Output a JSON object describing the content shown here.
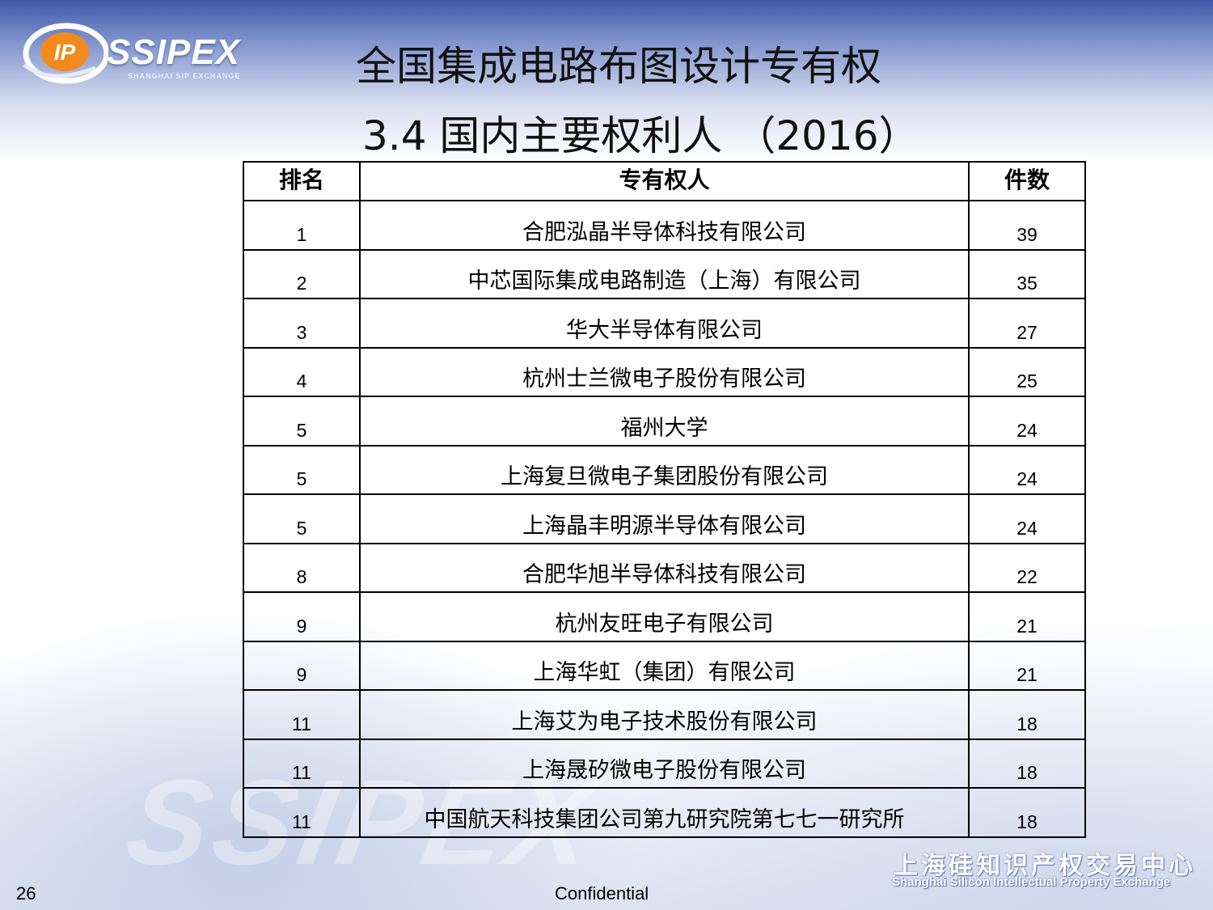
{
  "logo": {
    "mark_text": "IP",
    "name": "SSIPEX",
    "tagline": "SHANGHAI SIP EXCHANGE"
  },
  "slide": {
    "title": "全国集成电路布图设计专有权",
    "subtitle": "3.4  国内主要权利人 （2016）"
  },
  "table": {
    "headers": {
      "rank": "排名",
      "holder": "专有权人",
      "count": "件数"
    },
    "rows": [
      {
        "rank": "1",
        "holder": "合肥泓晶半导体科技有限公司",
        "count": "39"
      },
      {
        "rank": "2",
        "holder": "中芯国际集成电路制造（上海）有限公司",
        "count": "35"
      },
      {
        "rank": "3",
        "holder": "华大半导体有限公司",
        "count": "27"
      },
      {
        "rank": "4",
        "holder": "杭州士兰微电子股份有限公司",
        "count": "25"
      },
      {
        "rank": "5",
        "holder": "福州大学",
        "count": "24"
      },
      {
        "rank": "5",
        "holder": "上海复旦微电子集团股份有限公司",
        "count": "24"
      },
      {
        "rank": "5",
        "holder": "上海晶丰明源半导体有限公司",
        "count": "24"
      },
      {
        "rank": "8",
        "holder": "合肥华旭半导体科技有限公司",
        "count": "22"
      },
      {
        "rank": "9",
        "holder": "杭州友旺电子有限公司",
        "count": "21"
      },
      {
        "rank": "9",
        "holder": "上海华虹（集团）有限公司",
        "count": "21"
      },
      {
        "rank": "11",
        "holder": "上海艾为电子技术股份有限公司",
        "count": "18"
      },
      {
        "rank": "11",
        "holder": "上海晟矽微电子股份有限公司",
        "count": "18"
      },
      {
        "rank": "11",
        "holder": "中国航天科技集团公司第九研究院第七七一研究所",
        "count": "18"
      }
    ]
  },
  "footer": {
    "page_number": "26",
    "confidential": "Confidential",
    "org_cn": "上海硅知识产权交易中心",
    "org_en": "Shanghai Silicon Intellectual Property Exchange"
  },
  "colors": {
    "header_band": "#3d5aa8",
    "logo_orange": "#f28a1e",
    "text": "#000000"
  }
}
